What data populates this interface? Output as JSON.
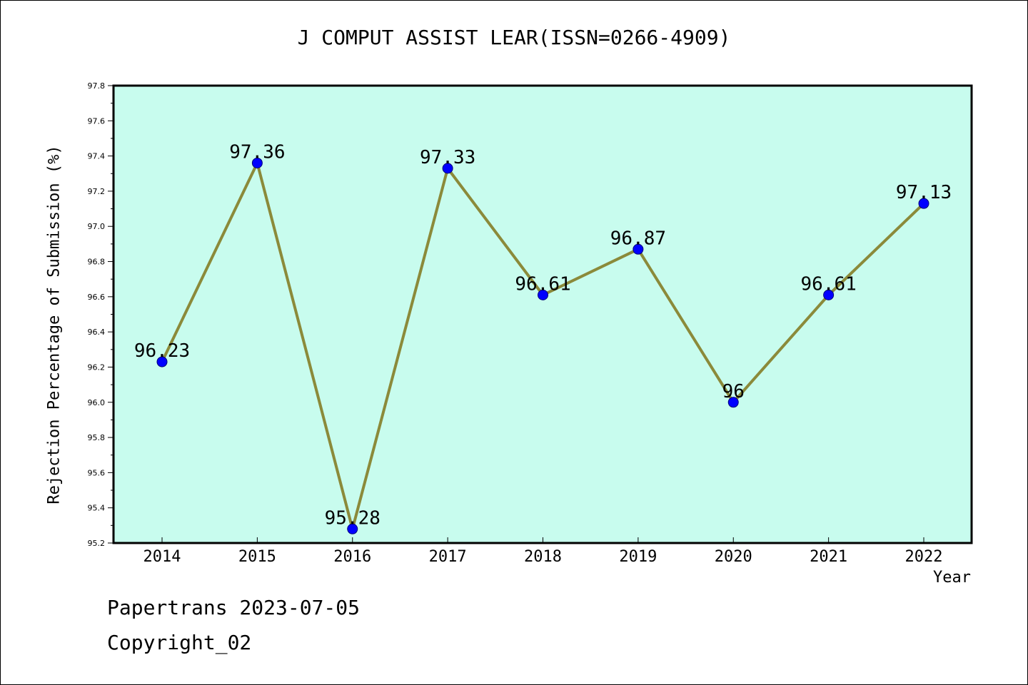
{
  "chart_data": {
    "type": "line",
    "title": "J COMPUT ASSIST LEAR(ISSN=0266-4909)",
    "xlabel": "Year",
    "ylabel": "Rejection Percentage of Submission (%)",
    "categories": [
      "2014",
      "2015",
      "2016",
      "2017",
      "2018",
      "2019",
      "2020",
      "2021",
      "2022"
    ],
    "series": [
      {
        "values": [
          96.23,
          97.36,
          95.28,
          97.33,
          96.61,
          96.87,
          96,
          96.61,
          97.13
        ],
        "data_labels": [
          "96.23",
          "97.36",
          "95.28",
          "97.33",
          "96.61",
          "96.87",
          "96",
          "96.61",
          "97.13"
        ]
      }
    ],
    "ylim": [
      95.2,
      97.8
    ],
    "yticks": [
      "95.2",
      "95.4",
      "95.6",
      "95.8",
      "96.0",
      "96.2",
      "96.4",
      "96.6",
      "96.8",
      "97.0",
      "97.2",
      "97.4",
      "97.6",
      "97.8"
    ],
    "grid": false,
    "legend": "none",
    "colors": {
      "plot_background": "#c8fcee",
      "line": "#8b8a3a",
      "marker": "#0000ff",
      "axis": "#000000"
    }
  },
  "footer": {
    "line1": "Papertrans 2023-07-05",
    "line2": "Copyright_02"
  }
}
